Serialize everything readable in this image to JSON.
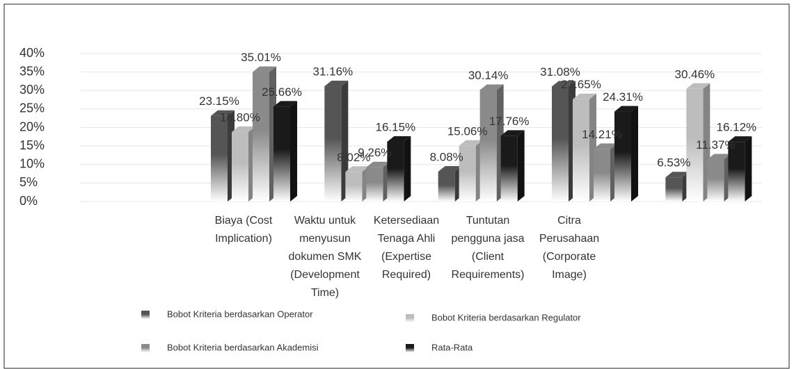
{
  "chart_data": {
    "type": "bar3d",
    "categories": [
      null,
      "Biaya (Cost Implication)",
      "Waktu untuk menyusun dokumen SMK (Development Time)",
      "Ketersediaan Tenaga Ahli (Expertise Required)",
      "Tuntutan pengguna jasa (Client Requirements)",
      "Citra Perusahaan (Corporate Image)"
    ],
    "series": [
      {
        "name": "Bobot Kriteria berdasarkan Operator",
        "color": "#555555",
        "values": [
          null,
          23.15,
          31.16,
          8.08,
          31.08,
          6.53
        ],
        "value_labels": [
          null,
          "23.15%",
          "31.16%",
          "8.08%",
          "31.08%",
          "6.53%"
        ]
      },
      {
        "name": "Bobot Kriteria berdasarkan Regulator",
        "color": "#bdbdbd",
        "values": [
          null,
          18.8,
          8.02,
          15.06,
          27.65,
          30.46
        ],
        "value_labels": [
          null,
          "18.80%",
          "8.02%",
          "15.06%",
          "27.65%",
          "30.46%"
        ]
      },
      {
        "name": "Bobot Kriteria berdasarkan Akademisi",
        "color": "#8a8a8a",
        "values": [
          null,
          35.01,
          9.26,
          30.14,
          14.21,
          11.37
        ],
        "value_labels": [
          null,
          "35.01%",
          "9.26%",
          "30.14%",
          "14.21%",
          "11.37%"
        ]
      },
      {
        "name": "Rata-Rata",
        "color": "#1a1a1a",
        "values": [
          null,
          25.66,
          16.15,
          17.76,
          24.31,
          16.12
        ],
        "value_labels": [
          null,
          "25.66%",
          "16.15%",
          "17.76%",
          "24.31%",
          "16.12%"
        ]
      }
    ],
    "ylim": [
      0,
      40
    ],
    "yticks": [
      {
        "value": 0,
        "label": "0%"
      },
      {
        "value": 5,
        "label": "5%"
      },
      {
        "value": 10,
        "label": "10%"
      },
      {
        "value": 15,
        "label": "15%"
      },
      {
        "value": 20,
        "label": "20%"
      },
      {
        "value": 25,
        "label": "25%"
      },
      {
        "value": 30,
        "label": "30%"
      },
      {
        "value": 35,
        "label": "35%"
      },
      {
        "value": 40,
        "label": "40%"
      }
    ],
    "grid": true
  }
}
